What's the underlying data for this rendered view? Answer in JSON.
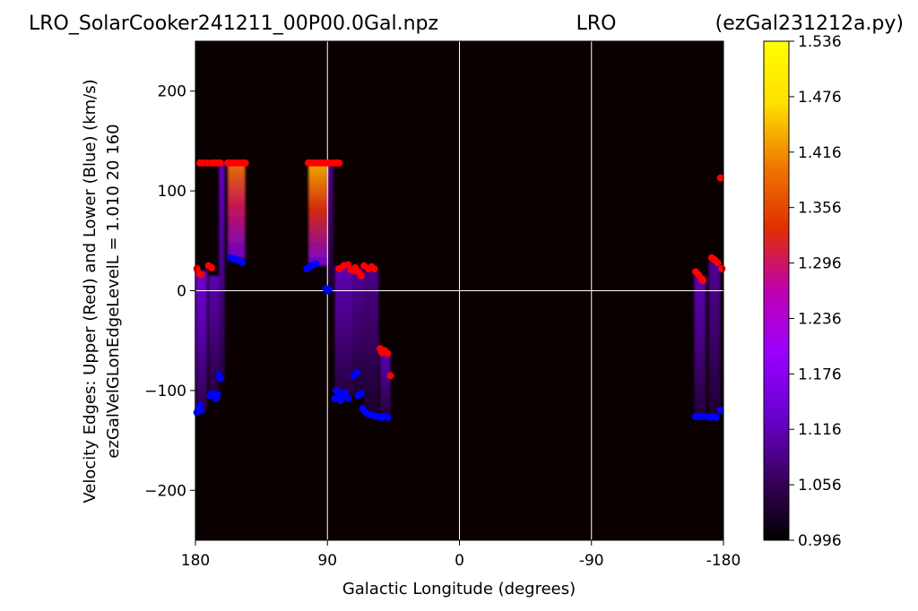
{
  "chart_data": {
    "type": "heatmap",
    "title_left": "LRO_SolarCooker241211_00P00.0Gal.npz",
    "title_center": "LRO",
    "title_right": "(ezGal231212a.py)",
    "xlabel": "Galactic Longitude (degrees)",
    "ylabel_line1": "Velocity Edges: Upper (Red) and Lower (Blue) (km/s)",
    "ylabel_line2": "ezGalVelGLonEdgeLevelL = 1.010  20  160",
    "xlim": [
      180,
      -180
    ],
    "ylim": [
      -250,
      250
    ],
    "x_ticks": [
      180,
      90,
      0,
      -90,
      -180
    ],
    "x_tick_labels": [
      "180",
      "90",
      "0",
      "-90",
      "-180"
    ],
    "y_ticks": [
      200,
      100,
      0,
      -100,
      -200
    ],
    "y_tick_labels": [
      "200",
      "100",
      "0",
      "−100",
      "−200"
    ],
    "grid": true,
    "colorbar": {
      "min": 0.996,
      "max": 1.536,
      "ticks": [
        1.536,
        1.476,
        1.416,
        1.356,
        1.296,
        1.236,
        1.176,
        1.116,
        1.056,
        0.996
      ],
      "tick_labels": [
        "1.536",
        "1.476",
        "1.416",
        "1.356",
        "1.296",
        "1.236",
        "1.176",
        "1.116",
        "1.056",
        "0.996"
      ],
      "colormap": "gnuplot",
      "stops": [
        "#000000",
        "#3a0060",
        "#6a00d0",
        "#9a00ff",
        "#c000b0",
        "#e03000",
        "#f07800",
        "#ffe000",
        "#ffff00"
      ]
    },
    "colors": {
      "upper": "#ff0000",
      "lower": "#0000ff",
      "background": "#0a0000"
    },
    "heat_strips": [
      {
        "x0": 180,
        "x1": 172,
        "y0": -120,
        "y1": 20,
        "v": 1.15
      },
      {
        "x0": 171,
        "x1": 164,
        "y0": -105,
        "y1": 15,
        "v": 1.12
      },
      {
        "x0": 164,
        "x1": 160,
        "y0": -90,
        "y1": 128,
        "v": 1.13
      },
      {
        "x0": 158,
        "x1": 146,
        "y0": 32,
        "y1": 128,
        "v": 1.4
      },
      {
        "x0": 103,
        "x1": 90,
        "y0": 25,
        "y1": 128,
        "v": 1.44
      },
      {
        "x0": 90,
        "x1": 86,
        "y0": 0,
        "y1": 128,
        "v": 1.09
      },
      {
        "x0": 85,
        "x1": 73,
        "y0": -110,
        "y1": 25,
        "v": 1.12
      },
      {
        "x0": 73,
        "x1": 65,
        "y0": -105,
        "y1": 22,
        "v": 1.1
      },
      {
        "x0": 65,
        "x1": 55,
        "y0": -122,
        "y1": 20,
        "v": 1.09
      },
      {
        "x0": 54,
        "x1": 47,
        "y0": -125,
        "y1": -60,
        "v": 1.12
      },
      {
        "x0": -160,
        "x1": -168,
        "y0": -125,
        "y1": 15,
        "v": 1.12
      },
      {
        "x0": -170,
        "x1": -178,
        "y0": -125,
        "y1": 30,
        "v": 1.1
      }
    ],
    "upper_points": [
      [
        179,
        22
      ],
      [
        178,
        18
      ],
      [
        176,
        16
      ],
      [
        171,
        25
      ],
      [
        169,
        23
      ],
      [
        177,
        128
      ],
      [
        175,
        128
      ],
      [
        172,
        128
      ],
      [
        169,
        128
      ],
      [
        167,
        128
      ],
      [
        165,
        128
      ],
      [
        163,
        128
      ],
      [
        158,
        128
      ],
      [
        156,
        128
      ],
      [
        154,
        128
      ],
      [
        152,
        128
      ],
      [
        150,
        128
      ],
      [
        148,
        128
      ],
      [
        146,
        128
      ],
      [
        103,
        128
      ],
      [
        101,
        128
      ],
      [
        99,
        128
      ],
      [
        97,
        128
      ],
      [
        95,
        128
      ],
      [
        93,
        128
      ],
      [
        91,
        128
      ],
      [
        89,
        128
      ],
      [
        86,
        128
      ],
      [
        84,
        128
      ],
      [
        82,
        128
      ],
      [
        82,
        22
      ],
      [
        79,
        25
      ],
      [
        76,
        26
      ],
      [
        74,
        21
      ],
      [
        72,
        20
      ],
      [
        71,
        23
      ],
      [
        69,
        19
      ],
      [
        67,
        15
      ],
      [
        65,
        25
      ],
      [
        62,
        22
      ],
      [
        60,
        24
      ],
      [
        58,
        22
      ],
      [
        54,
        -58
      ],
      [
        53,
        -62
      ],
      [
        51,
        -60
      ],
      [
        49,
        -63
      ],
      [
        47,
        -85
      ],
      [
        -161,
        19
      ],
      [
        -163,
        16
      ],
      [
        -165,
        12
      ],
      [
        -166,
        10
      ],
      [
        -172,
        33
      ],
      [
        -174,
        31
      ],
      [
        -176,
        28
      ],
      [
        -179,
        22
      ],
      [
        -178,
        113
      ]
    ],
    "lower_points": [
      [
        179,
        -122
      ],
      [
        178,
        -118
      ],
      [
        177,
        -115
      ],
      [
        176,
        -120
      ],
      [
        170,
        -105
      ],
      [
        168,
        -103
      ],
      [
        166,
        -108
      ],
      [
        165,
        -104
      ],
      [
        164,
        -84
      ],
      [
        163,
        -88
      ],
      [
        156,
        33
      ],
      [
        154,
        32
      ],
      [
        152,
        31
      ],
      [
        150,
        30
      ],
      [
        148,
        28
      ],
      [
        104,
        22
      ],
      [
        102,
        24
      ],
      [
        100,
        26
      ],
      [
        98,
        27
      ],
      [
        91,
        2
      ],
      [
        90,
        0
      ],
      [
        89,
        1
      ],
      [
        85,
        -108
      ],
      [
        84,
        -100
      ],
      [
        82,
        -103
      ],
      [
        81,
        -110
      ],
      [
        79,
        -105
      ],
      [
        78,
        -102
      ],
      [
        76,
        -108
      ],
      [
        72,
        -85
      ],
      [
        70,
        -82
      ],
      [
        69,
        -105
      ],
      [
        67,
        -103
      ],
      [
        66,
        -118
      ],
      [
        64,
        -122
      ],
      [
        62,
        -124
      ],
      [
        59,
        -125
      ],
      [
        57,
        -126
      ],
      [
        55,
        -126
      ],
      [
        53,
        -127
      ],
      [
        51,
        -126
      ],
      [
        49,
        -127
      ],
      [
        -161,
        -126
      ],
      [
        -163,
        -126
      ],
      [
        -165,
        -126
      ],
      [
        -168,
        -126
      ],
      [
        -171,
        -127
      ],
      [
        -173,
        -126
      ],
      [
        -175,
        -127
      ],
      [
        -178,
        -120
      ]
    ]
  }
}
